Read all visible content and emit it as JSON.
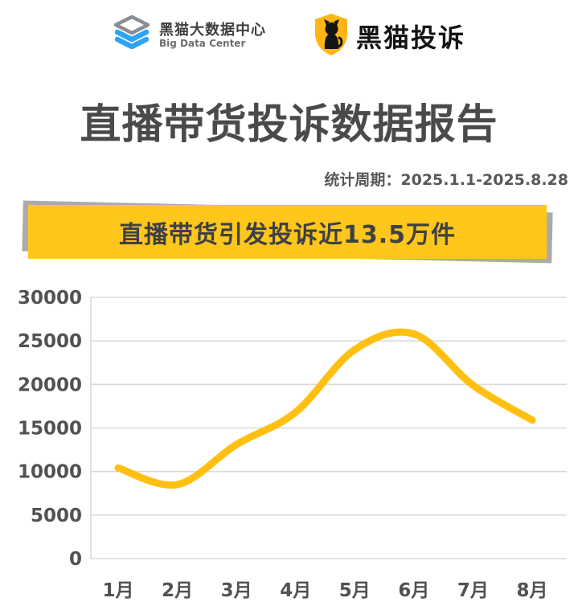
{
  "header": {
    "left_logo": {
      "name": "黑猫大数据中心",
      "subtitle": "Big Data Center"
    },
    "right_logo": {
      "name": "黑猫投诉"
    }
  },
  "title": "直播带货投诉数据报告",
  "period": "统计周期：2025.1.1-2025.8.28",
  "banner": {
    "text": "直播带货引发投诉近13.5万件"
  },
  "colors": {
    "banner_yellow": "#FFC61B",
    "banner_shadow": "#ababab",
    "line_yellow": "#FFC011",
    "title_gray": "#4a4a4c",
    "axis_gray": "#515254",
    "grid_gray": "#dadada",
    "shield_yellow": "#FFB515"
  },
  "chart_data": {
    "type": "line",
    "categories": [
      "1月",
      "2月",
      "3月",
      "4月",
      "5月",
      "6月",
      "7月",
      "8月"
    ],
    "values": [
      10400,
      8500,
      13100,
      16800,
      24000,
      25800,
      19900,
      15900
    ],
    "title": "",
    "xlabel": "",
    "ylabel": "",
    "ylim": [
      0,
      30000
    ],
    "yticks": [
      0,
      5000,
      10000,
      15000,
      20000,
      25000,
      30000
    ],
    "grid": true,
    "legend": false,
    "smooth": true,
    "line_color": "#FFC011",
    "line_width": 9
  }
}
